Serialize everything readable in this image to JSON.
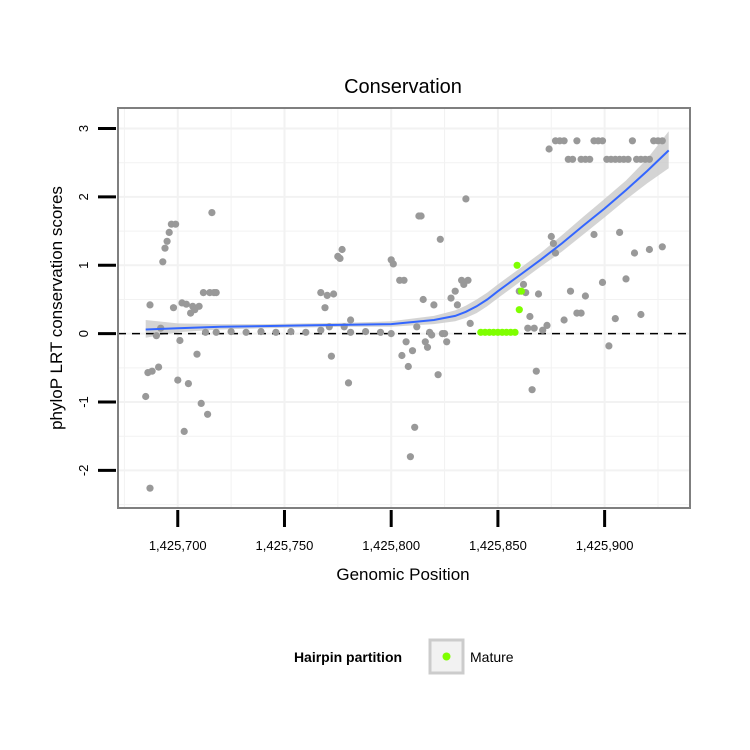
{
  "chart_data": {
    "type": "scatter",
    "title": "Conservation",
    "xlabel": "Genomic Position",
    "ylabel": "phyloP LRT conservation scores",
    "xlim": [
      1425672,
      1425940
    ],
    "ylim": [
      -2.55,
      3.3
    ],
    "x_ticks": [
      1425700,
      1425750,
      1425800,
      1425850,
      1425900
    ],
    "x_tick_labels": [
      "1,425,700",
      "1,425,750",
      "1,425,800",
      "1,425,850",
      "1,425,900"
    ],
    "y_ticks": [
      -2,
      -1,
      0,
      1,
      2,
      3
    ],
    "y_tick_labels": [
      "-2",
      "-1",
      "0",
      "1",
      "2",
      "3"
    ],
    "reference_line": {
      "y": 0,
      "style": "dashed"
    },
    "grid": true,
    "colors": {
      "points": "#999999",
      "mature": "#7fff00",
      "smooth_line": "#3366ff",
      "ribbon": "#cccccc",
      "panel_border": "#7f7f7f",
      "grid": "#f2f2f2"
    },
    "series": [
      {
        "name": "conservation scores",
        "points": [
          [
            1425685,
            -0.92
          ],
          [
            1425686,
            -0.57
          ],
          [
            1425687,
            -2.26
          ],
          [
            1425687,
            0.42
          ],
          [
            1425688,
            -0.55
          ],
          [
            1425690,
            -0.03
          ],
          [
            1425691,
            -0.49
          ],
          [
            1425692,
            0.08
          ],
          [
            1425693,
            1.05
          ],
          [
            1425694,
            1.25
          ],
          [
            1425695,
            1.35
          ],
          [
            1425696,
            1.48
          ],
          [
            1425697,
            1.6
          ],
          [
            1425698,
            0.38
          ],
          [
            1425699,
            1.6
          ],
          [
            1425700,
            -0.68
          ],
          [
            1425701,
            -0.1
          ],
          [
            1425702,
            0.45
          ],
          [
            1425703,
            -1.43
          ],
          [
            1425704,
            0.43
          ],
          [
            1425705,
            -0.73
          ],
          [
            1425706,
            0.3
          ],
          [
            1425707,
            0.4
          ],
          [
            1425708,
            0.35
          ],
          [
            1425709,
            -0.3
          ],
          [
            1425710,
            0.4
          ],
          [
            1425711,
            -1.02
          ],
          [
            1425712,
            0.6
          ],
          [
            1425713,
            0.02
          ],
          [
            1425714,
            -1.18
          ],
          [
            1425715,
            0.6
          ],
          [
            1425716,
            1.77
          ],
          [
            1425717,
            0.6
          ],
          [
            1425718,
            0.6
          ],
          [
            1425718,
            0.02
          ],
          [
            1425725,
            0.03
          ],
          [
            1425732,
            0.02
          ],
          [
            1425739,
            0.03
          ],
          [
            1425746,
            0.02
          ],
          [
            1425753,
            0.03
          ],
          [
            1425760,
            0.02
          ],
          [
            1425767,
            0.05
          ],
          [
            1425767,
            0.6
          ],
          [
            1425769,
            0.38
          ],
          [
            1425770,
            0.56
          ],
          [
            1425771,
            0.1
          ],
          [
            1425772,
            -0.33
          ],
          [
            1425773,
            0.58
          ],
          [
            1425775,
            1.13
          ],
          [
            1425776,
            1.1
          ],
          [
            1425777,
            1.23
          ],
          [
            1425778,
            0.1
          ],
          [
            1425780,
            -0.72
          ],
          [
            1425781,
            0.2
          ],
          [
            1425781,
            0.02
          ],
          [
            1425788,
            0.03
          ],
          [
            1425795,
            0.02
          ],
          [
            1425800,
            0.0
          ],
          [
            1425800,
            1.08
          ],
          [
            1425801,
            1.02
          ],
          [
            1425804,
            0.78
          ],
          [
            1425805,
            -0.32
          ],
          [
            1425806,
            0.78
          ],
          [
            1425807,
            -0.12
          ],
          [
            1425808,
            -0.48
          ],
          [
            1425809,
            -1.8
          ],
          [
            1425810,
            -0.25
          ],
          [
            1425811,
            -1.37
          ],
          [
            1425812,
            0.1
          ],
          [
            1425813,
            1.72
          ],
          [
            1425814,
            1.72
          ],
          [
            1425815,
            0.5
          ],
          [
            1425816,
            -0.12
          ],
          [
            1425817,
            -0.2
          ],
          [
            1425818,
            0.02
          ],
          [
            1425819,
            -0.02
          ],
          [
            1425820,
            0.42
          ],
          [
            1425822,
            -0.6
          ],
          [
            1425823,
            1.38
          ],
          [
            1425824,
            0.0
          ],
          [
            1425825,
            0.0
          ],
          [
            1425826,
            -0.12
          ],
          [
            1425828,
            0.52
          ],
          [
            1425830,
            0.62
          ],
          [
            1425831,
            0.42
          ],
          [
            1425833,
            0.78
          ],
          [
            1425834,
            0.72
          ],
          [
            1425835,
            1.97
          ],
          [
            1425836,
            0.78
          ],
          [
            1425837,
            0.15
          ],
          [
            1425860,
            0.62
          ],
          [
            1425862,
            0.72
          ],
          [
            1425863,
            0.6
          ],
          [
            1425864,
            0.08
          ],
          [
            1425865,
            0.25
          ],
          [
            1425866,
            -0.82
          ],
          [
            1425867,
            0.08
          ],
          [
            1425868,
            -0.55
          ],
          [
            1425869,
            0.58
          ],
          [
            1425871,
            0.05
          ],
          [
            1425873,
            0.12
          ],
          [
            1425875,
            1.42
          ],
          [
            1425876,
            1.32
          ],
          [
            1425877,
            1.18
          ],
          [
            1425881,
            0.2
          ],
          [
            1425884,
            0.62
          ],
          [
            1425887,
            0.3
          ],
          [
            1425889,
            0.3
          ],
          [
            1425891,
            0.55
          ],
          [
            1425895,
            1.45
          ],
          [
            1425899,
            0.75
          ],
          [
            1425902,
            -0.18
          ],
          [
            1425905,
            0.22
          ],
          [
            1425907,
            1.48
          ],
          [
            1425910,
            0.8
          ],
          [
            1425914,
            1.18
          ],
          [
            1425917,
            0.28
          ],
          [
            1425921,
            1.23
          ],
          [
            1425927,
            1.27
          ],
          [
            1425874,
            2.7
          ],
          [
            1425877,
            2.82
          ],
          [
            1425879,
            2.82
          ],
          [
            1425881,
            2.82
          ],
          [
            1425883,
            2.55
          ],
          [
            1425885,
            2.55
          ],
          [
            1425887,
            2.82
          ],
          [
            1425889,
            2.55
          ],
          [
            1425891,
            2.55
          ],
          [
            1425893,
            2.55
          ],
          [
            1425895,
            2.82
          ],
          [
            1425897,
            2.82
          ],
          [
            1425899,
            2.82
          ],
          [
            1425901,
            2.55
          ],
          [
            1425903,
            2.55
          ],
          [
            1425905,
            2.55
          ],
          [
            1425907,
            2.55
          ],
          [
            1425909,
            2.55
          ],
          [
            1425911,
            2.55
          ],
          [
            1425913,
            2.82
          ],
          [
            1425915,
            2.55
          ],
          [
            1425917,
            2.55
          ],
          [
            1425919,
            2.55
          ],
          [
            1425921,
            2.55
          ],
          [
            1425923,
            2.82
          ],
          [
            1425925,
            2.82
          ],
          [
            1425927,
            2.82
          ]
        ]
      },
      {
        "name": "Mature",
        "points": [
          [
            1425842,
            0.02
          ],
          [
            1425844,
            0.02
          ],
          [
            1425846,
            0.02
          ],
          [
            1425848,
            0.02
          ],
          [
            1425850,
            0.02
          ],
          [
            1425852,
            0.02
          ],
          [
            1425854,
            0.02
          ],
          [
            1425856,
            0.02
          ],
          [
            1425858,
            0.02
          ],
          [
            1425859,
            1.0
          ],
          [
            1425860,
            0.35
          ],
          [
            1425861,
            0.62
          ]
        ]
      }
    ],
    "smooth": {
      "x": [
        1425685,
        1425700,
        1425720,
        1425740,
        1425760,
        1425780,
        1425800,
        1425820,
        1425830,
        1425835,
        1425840,
        1425845,
        1425850,
        1425860,
        1425870,
        1425880,
        1425890,
        1425900,
        1425910,
        1425920,
        1425930
      ],
      "y": [
        0.06,
        0.08,
        0.1,
        0.11,
        0.12,
        0.13,
        0.14,
        0.2,
        0.26,
        0.32,
        0.4,
        0.5,
        0.62,
        0.85,
        1.08,
        1.32,
        1.58,
        1.83,
        2.1,
        2.38,
        2.68
      ],
      "lower": [
        -0.06,
        0.02,
        0.06,
        0.08,
        0.09,
        0.1,
        0.1,
        0.14,
        0.18,
        0.23,
        0.3,
        0.4,
        0.52,
        0.75,
        0.98,
        1.2,
        1.45,
        1.7,
        1.96,
        2.2,
        2.42
      ],
      "upper": [
        0.2,
        0.15,
        0.14,
        0.14,
        0.15,
        0.16,
        0.18,
        0.26,
        0.34,
        0.41,
        0.5,
        0.6,
        0.72,
        0.95,
        1.18,
        1.44,
        1.71,
        1.97,
        2.24,
        2.56,
        2.96
      ]
    },
    "legend": {
      "title": "Hairpin partition",
      "entries": [
        "Mature"
      ],
      "position": "bottom"
    }
  }
}
